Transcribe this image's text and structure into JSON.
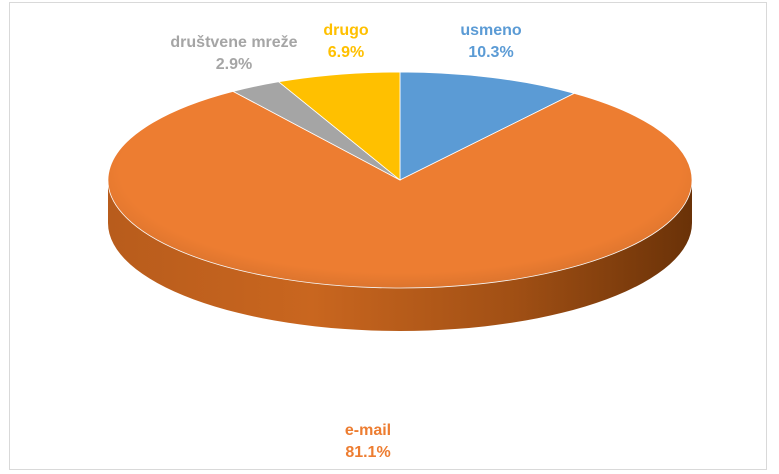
{
  "chart_data": {
    "type": "pie",
    "style": "3d",
    "slices": [
      {
        "label": "usmeno",
        "value": 10.3,
        "value_label": "10.3%",
        "color": "#5b9bd5"
      },
      {
        "label": "e-mail",
        "value": 81.1,
        "value_label": "81.1%",
        "color": "#ed7d31"
      },
      {
        "label": "društvene mreže",
        "value": 2.9,
        "value_label": "2.9%",
        "color": "#a5a5a5"
      },
      {
        "label": "drugo",
        "value": 6.9,
        "value_label": "6.9%",
        "color": "#ffc000"
      }
    ],
    "title": "",
    "legend": "none",
    "start": "12 o'clock, clockwise",
    "data_labels": "category name and percentage"
  },
  "colors": {
    "label_usmeno": "#5b9bd5",
    "label_email": "#ed7d31",
    "label_drustvene": "#a5a5a5",
    "label_drugo": "#ffc000",
    "border": "#d9d9d9"
  }
}
